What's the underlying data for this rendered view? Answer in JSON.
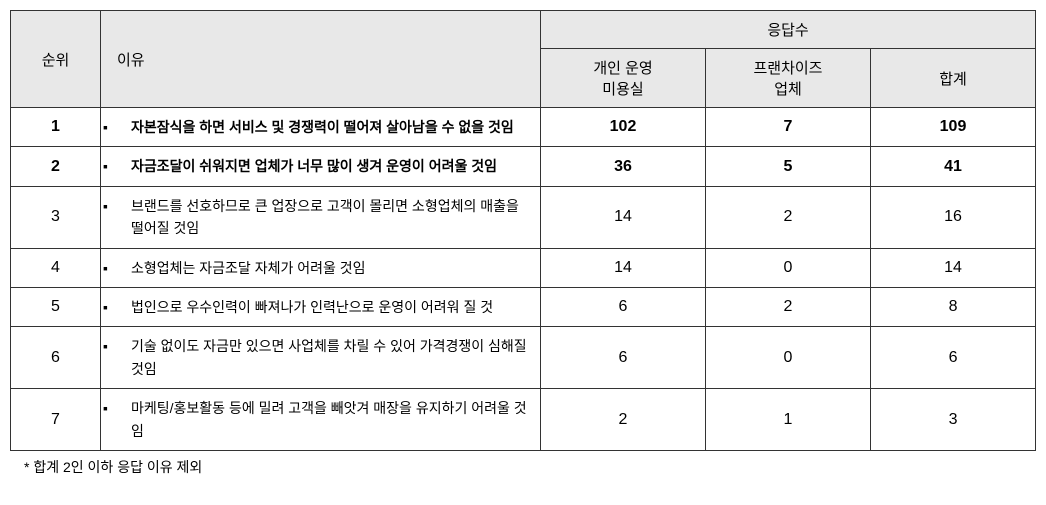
{
  "table": {
    "headers": {
      "rank": "순위",
      "reason": "이유",
      "responses": "응답수",
      "col1": "개인 운영\n미용실",
      "col2": "프랜차이즈\n업체",
      "col3": "합계"
    },
    "rows": [
      {
        "rank": "1",
        "reason": "자본잠식을 하면 서비스 및 경쟁력이 떨어져 살아남을 수 없을 것임",
        "v1": "102",
        "v2": "7",
        "v3": "109",
        "bold": true
      },
      {
        "rank": "2",
        "reason": "자금조달이 쉬워지면 업체가 너무 많이 생겨 운영이 어려울 것임",
        "v1": "36",
        "v2": "5",
        "v3": "41",
        "bold": true
      },
      {
        "rank": "3",
        "reason": "브랜드를 선호하므로 큰 업장으로 고객이 몰리면 소형업체의 매출을 떨어질 것임",
        "v1": "14",
        "v2": "2",
        "v3": "16",
        "bold": false
      },
      {
        "rank": "4",
        "reason": "소형업체는 자금조달 자체가 어려울 것임",
        "v1": "14",
        "v2": "0",
        "v3": "14",
        "bold": false
      },
      {
        "rank": "5",
        "reason": "법인으로 우수인력이 빠져나가 인력난으로 운영이 어려워 질 것",
        "v1": "6",
        "v2": "2",
        "v3": "8",
        "bold": false
      },
      {
        "rank": "6",
        "reason": "기술 없이도 자금만 있으면 사업체를 차릴 수 있어 가격경쟁이 심해질 것임",
        "v1": "6",
        "v2": "0",
        "v3": "6",
        "bold": false
      },
      {
        "rank": "7",
        "reason": "마케팅/홍보활동 등에 밀려 고객을 빼앗겨 매장을 유지하기 어려울 것임",
        "v1": "2",
        "v2": "1",
        "v3": "3",
        "bold": false
      }
    ],
    "footnote": "* 합계 2인 이하 응답 이유 제외",
    "bullet": "▪",
    "colors": {
      "header_bg": "#e8e8e8",
      "border": "#333333",
      "text": "#000000"
    },
    "fontsize": {
      "header": 15,
      "cell": 16,
      "reason": 14,
      "footnote": 14
    }
  }
}
